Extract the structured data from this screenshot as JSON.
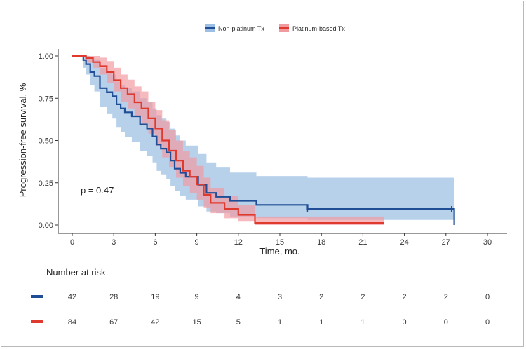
{
  "chart_data": {
    "type": "line",
    "subtype": "kaplan-meier",
    "xlabel": "Time, mo.",
    "ylabel": "Progression-free survival, %",
    "xlim": [
      0,
      30
    ],
    "ylim": [
      0,
      1
    ],
    "x_ticks": [
      0,
      3,
      6,
      9,
      12,
      15,
      18,
      21,
      24,
      27,
      30
    ],
    "y_ticks": [
      0.0,
      0.25,
      0.5,
      0.75,
      1.0
    ],
    "y_tick_labels": [
      "0.00",
      "0.25",
      "0.50",
      "0.75",
      "1.00"
    ],
    "grid": false,
    "legend_position": "top",
    "annotation": "p = 0.47",
    "series": [
      {
        "name": "Non-platinum Tx",
        "color": "#1f4e96",
        "band_color": "#9dbfe3",
        "x": [
          0,
          0.8,
          1.0,
          1.3,
          1.6,
          2.0,
          2.5,
          2.9,
          3.2,
          3.5,
          3.8,
          4.3,
          4.9,
          5.4,
          5.8,
          6.1,
          6.4,
          6.8,
          7.1,
          7.4,
          7.8,
          8.2,
          8.5,
          9.1,
          9.7,
          10.4,
          11.4,
          13.3,
          17.0,
          27.4,
          27.6
        ],
        "y": [
          1.0,
          0.976,
          0.952,
          0.905,
          0.881,
          0.81,
          0.786,
          0.762,
          0.714,
          0.69,
          0.667,
          0.643,
          0.595,
          0.571,
          0.524,
          0.476,
          0.452,
          0.429,
          0.381,
          0.333,
          0.309,
          0.286,
          0.286,
          0.238,
          0.19,
          0.167,
          0.143,
          0.119,
          0.095,
          0.095,
          0.0
        ],
        "ci_lower": [
          1.0,
          0.93,
          0.89,
          0.83,
          0.79,
          0.7,
          0.66,
          0.63,
          0.58,
          0.55,
          0.52,
          0.49,
          0.44,
          0.41,
          0.37,
          0.32,
          0.3,
          0.27,
          0.23,
          0.2,
          0.17,
          0.15,
          0.15,
          0.11,
          0.08,
          0.07,
          0.05,
          0.04,
          0.03,
          0.03,
          0.0
        ],
        "ci_upper": [
          1.0,
          1.0,
          1.0,
          0.99,
          0.98,
          0.93,
          0.91,
          0.89,
          0.85,
          0.83,
          0.81,
          0.79,
          0.75,
          0.73,
          0.69,
          0.65,
          0.63,
          0.61,
          0.57,
          0.53,
          0.5,
          0.47,
          0.47,
          0.42,
          0.37,
          0.34,
          0.31,
          0.29,
          0.28,
          0.28,
          0.0
        ],
        "censor_x": [
          17.0,
          27.4
        ],
        "censor_y": [
          0.095,
          0.095
        ]
      },
      {
        "name": "Platinum-based Tx",
        "color": "#e03a2f",
        "band_color": "#f19a9f",
        "x": [
          0,
          1.0,
          1.5,
          2.0,
          2.5,
          3.0,
          3.5,
          4.0,
          4.5,
          5.0,
          5.5,
          6.0,
          6.5,
          7.0,
          7.5,
          8.0,
          8.5,
          9.0,
          9.5,
          10.0,
          11.0,
          12.0,
          13.2,
          22.5
        ],
        "y": [
          1.0,
          0.988,
          0.964,
          0.94,
          0.905,
          0.857,
          0.81,
          0.774,
          0.726,
          0.69,
          0.631,
          0.571,
          0.5,
          0.44,
          0.381,
          0.321,
          0.286,
          0.24,
          0.179,
          0.131,
          0.095,
          0.06,
          0.012,
          0.012
        ],
        "ci_lower": [
          1.0,
          0.96,
          0.93,
          0.89,
          0.84,
          0.79,
          0.73,
          0.69,
          0.64,
          0.6,
          0.54,
          0.47,
          0.4,
          0.34,
          0.28,
          0.23,
          0.19,
          0.15,
          0.1,
          0.07,
          0.04,
          0.02,
          0.0,
          0.0
        ],
        "ci_upper": [
          1.0,
          1.0,
          1.0,
          0.99,
          0.97,
          0.93,
          0.89,
          0.86,
          0.82,
          0.79,
          0.73,
          0.68,
          0.62,
          0.56,
          0.5,
          0.44,
          0.4,
          0.35,
          0.28,
          0.22,
          0.17,
          0.12,
          0.05,
          0.05
        ]
      }
    ]
  },
  "risk_table": {
    "title": "Number at risk",
    "time_points": [
      0,
      3,
      6,
      9,
      12,
      15,
      18,
      21,
      24,
      27,
      30
    ],
    "rows": [
      {
        "name": "Non-platinum Tx",
        "color": "#1f4e96",
        "values": [
          "42",
          "28",
          "19",
          "9",
          "4",
          "3",
          "2",
          "2",
          "2",
          "2",
          "0"
        ]
      },
      {
        "name": "Platinum-based Tx",
        "color": "#e03a2f",
        "values": [
          "84",
          "67",
          "42",
          "15",
          "5",
          "1",
          "1",
          "1",
          "0",
          "0",
          "0"
        ]
      }
    ]
  }
}
